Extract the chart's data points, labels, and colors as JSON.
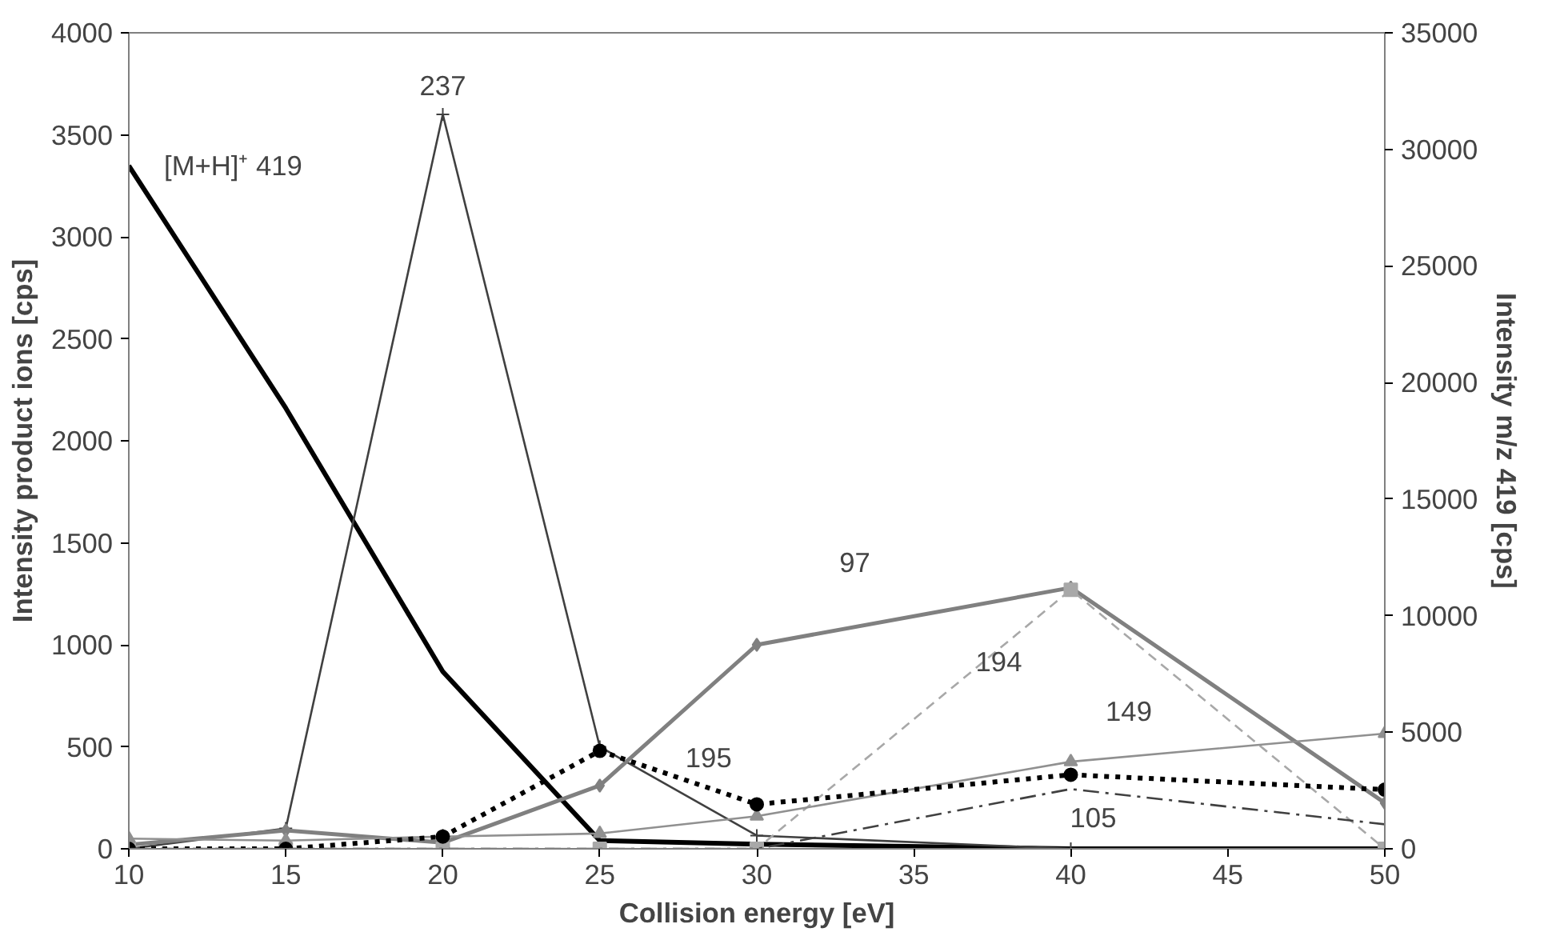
{
  "chart_data": {
    "type": "line",
    "x": [
      10,
      15,
      20,
      25,
      30,
      40,
      50
    ],
    "xlabel": "Collision energy [eV]",
    "ylabel": "Intensity product ions [cps]",
    "y2label": "Intensity m/z 419 [cps]",
    "xlim": [
      10,
      50
    ],
    "xticks": [
      10,
      15,
      20,
      25,
      30,
      35,
      40,
      45,
      50
    ],
    "ylim": [
      0,
      4000
    ],
    "yticks": [
      0,
      500,
      1000,
      1500,
      2000,
      2500,
      3000,
      3500,
      4000
    ],
    "y2lim": [
      0,
      35000
    ],
    "y2ticks": [
      0,
      5000,
      10000,
      15000,
      20000,
      25000,
      30000,
      35000
    ],
    "series": [
      {
        "name": "[M+H]⁺ 419",
        "color": "#000000",
        "axis": "y2",
        "marker": "none",
        "line_style": "solid",
        "values": [
          29300,
          18900,
          7600,
          350,
          200,
          0,
          0
        ]
      },
      {
        "name": "237",
        "color": "#404040",
        "marker": "cross",
        "line_style": "solid",
        "values": [
          0,
          100,
          3600,
          500,
          65,
          0,
          0
        ]
      },
      {
        "name": "97",
        "color": "#808080",
        "marker": "diamond",
        "line_style": "solid",
        "values": [
          20,
          90,
          30,
          310,
          1000,
          1280,
          225
        ]
      },
      {
        "name": "194",
        "color": "#a8a8a8",
        "marker": "square",
        "line_style": "dashed",
        "values": [
          0,
          0,
          0,
          0,
          0,
          1270,
          0
        ]
      },
      {
        "name": "149",
        "color": "#909090",
        "marker": "triangle",
        "line_style": "solid",
        "values": [
          50,
          40,
          60,
          75,
          160,
          427,
          565
        ]
      },
      {
        "name": "195",
        "color": "#000000",
        "marker": "circle",
        "line_style": "dotted",
        "values": [
          0,
          0,
          60,
          480,
          218,
          363,
          290
        ]
      },
      {
        "name": "105",
        "color": "#404040",
        "marker": "none",
        "line_style": "dashdot",
        "values": [
          0,
          0,
          0,
          0,
          0,
          293,
          120
        ]
      }
    ]
  }
}
